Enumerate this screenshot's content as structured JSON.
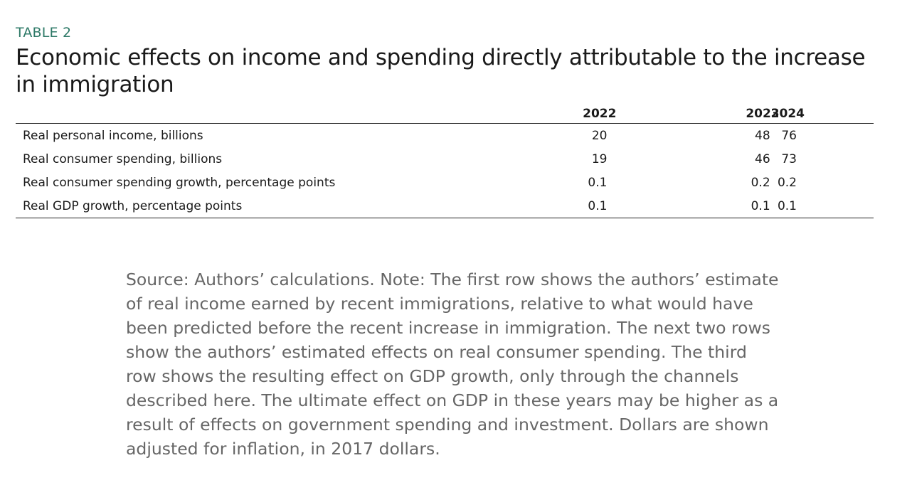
{
  "label": "TABLE 2",
  "title": "Economic effects on income and spending directly attributable to the increase in immigration",
  "table": {
    "columns": [
      "",
      "2022",
      "2023",
      "2024"
    ],
    "rows": [
      {
        "label": "Real personal income, billions",
        "values": [
          "20",
          "48",
          "76"
        ]
      },
      {
        "label": "Real consumer spending, billions",
        "values": [
          "19",
          "46",
          "73"
        ]
      },
      {
        "label": "Real consumer spending growth, percentage points",
        "values": [
          "0.1",
          "0.2",
          "0.2"
        ]
      },
      {
        "label": "Real GDP growth, percentage points",
        "values": [
          "0.1",
          "0.1",
          "0.1"
        ]
      }
    ]
  },
  "note": "Source: Authors’ calculations. Note: The first row shows the authors’ estimate of real income earned by recent immigrations, relative to what would have been predicted before the recent increase in immigration. The next two rows show the authors’ estimated effects on real consumer spending. The third row shows the resulting effect on GDP growth, only through the channels described here. The ultimate effect on GDP in these years may be higher as a result of effects on government spending and investment. Dollars are shown adjusted for inflation, in 2017 dollars."
}
